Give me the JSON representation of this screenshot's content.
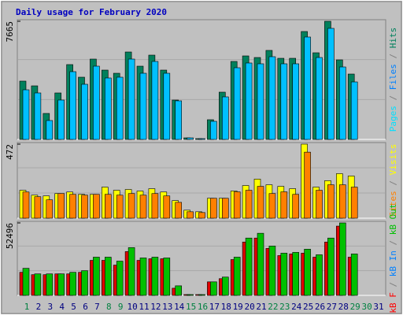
{
  "title": "Daily usage for February 2020",
  "legend_separator": " / ",
  "chart_data": [
    {
      "type": "bar",
      "ylim": [
        0,
        7665
      ],
      "yticks": [
        7665
      ],
      "extra_legend": [
        {
          "name": "Pages",
          "color": "#00e0ff"
        }
      ],
      "series": [
        {
          "name": "Files",
          "color": "#0080ff",
          "bar_color": "#00c0ff",
          "values": [
            3219,
            3015,
            1226,
            2555,
            4395,
            3577,
            4752,
            3986,
            4037,
            5212,
            4292,
            5059,
            4292,
            2504,
            102,
            51,
            1175,
            2760,
            4650,
            4957,
            4906,
            5366,
            4906,
            4906,
            6643,
            5314,
            7205,
            4701,
            3730,
            0,
            0
          ]
        },
        {
          "name": "Hits",
          "color": "#00805c",
          "bar_color": "#00805c",
          "values": [
            3782,
            3475,
            1686,
            3015,
            4855,
            4037,
            5212,
            4497,
            4292,
            5672,
            4752,
            5468,
            4497,
            2555,
            102,
            51,
            1278,
            3066,
            5059,
            5417,
            5314,
            5775,
            5263,
            5263,
            7001,
            5621,
            7665,
            5161,
            4241,
            0,
            0
          ]
        }
      ]
    },
    {
      "type": "bar",
      "ylim": [
        0,
        472
      ],
      "yticks": [
        472
      ],
      "extra_legend": [],
      "series": [
        {
          "name": "Sites",
          "color": "#ff8000",
          "bar_color": "#ff8000",
          "values": [
            167,
            137,
            117,
            157,
            152,
            147,
            152,
            152,
            147,
            157,
            147,
            157,
            142,
            101,
            41,
            36,
            127,
            127,
            168,
            178,
            203,
            157,
            168,
            152,
            421,
            178,
            213,
            213,
            198,
            0,
            0
          ]
        },
        {
          "name": "Visits",
          "color": "#ffff00",
          "bar_color": "#ffff00",
          "values": [
            178,
            147,
            142,
            157,
            167,
            152,
            152,
            198,
            178,
            183,
            173,
            188,
            167,
            112,
            51,
            41,
            127,
            127,
            173,
            208,
            249,
            213,
            203,
            188,
            472,
            198,
            239,
            284,
            269,
            0,
            0
          ]
        }
      ]
    },
    {
      "type": "bar",
      "ylim": [
        0,
        52496
      ],
      "yticks": [
        52496
      ],
      "extra_legend": [
        {
          "name": "kB In",
          "color": "#0080ff"
        }
      ],
      "series": [
        {
          "name": "kB Out",
          "color": "#00c000",
          "bar_color": "#00c000",
          "values": [
            19615,
            15576,
            15576,
            15576,
            16730,
            17884,
            27690,
            27690,
            24806,
            34613,
            27113,
            27690,
            27113,
            6923,
            577,
            577,
            9807,
            13268,
            27690,
            41536,
            44997,
            35767,
            30575,
            31152,
            33459,
            29421,
            41536,
            52496,
            29998,
            0,
            0
          ]
        },
        {
          "name": "kB F",
          "color": "#ff0000",
          "bar_color": "#e00000",
          "values": [
            16730,
            15000,
            15000,
            15576,
            15576,
            16730,
            25382,
            25382,
            21922,
            31729,
            25382,
            26536,
            26536,
            5192,
            577,
            577,
            9807,
            12115,
            25960,
            38651,
            41536,
            34036,
            28844,
            29998,
            30575,
            27690,
            38651,
            50188,
            27690,
            0,
            0
          ]
        }
      ],
      "categories": [
        "1",
        "2",
        "3",
        "4",
        "5",
        "6",
        "7",
        "8",
        "9",
        "10",
        "11",
        "12",
        "13",
        "14",
        "15",
        "16",
        "17",
        "18",
        "19",
        "20",
        "21",
        "22",
        "23",
        "24",
        "25",
        "26",
        "27",
        "28",
        "29",
        "30",
        "31"
      ],
      "category_colors": [
        "#008040",
        "#000080",
        "#000080",
        "#000080",
        "#000080",
        "#000080",
        "#000080",
        "#008040",
        "#008040",
        "#000080",
        "#000080",
        "#000080",
        "#000080",
        "#000080",
        "#008040",
        "#008040",
        "#000080",
        "#000080",
        "#000080",
        "#000080",
        "#000080",
        "#008040",
        "#008040",
        "#000080",
        "#000080",
        "#000080",
        "#000080",
        "#000080",
        "#008040",
        "#008040",
        "#000080"
      ]
    }
  ]
}
